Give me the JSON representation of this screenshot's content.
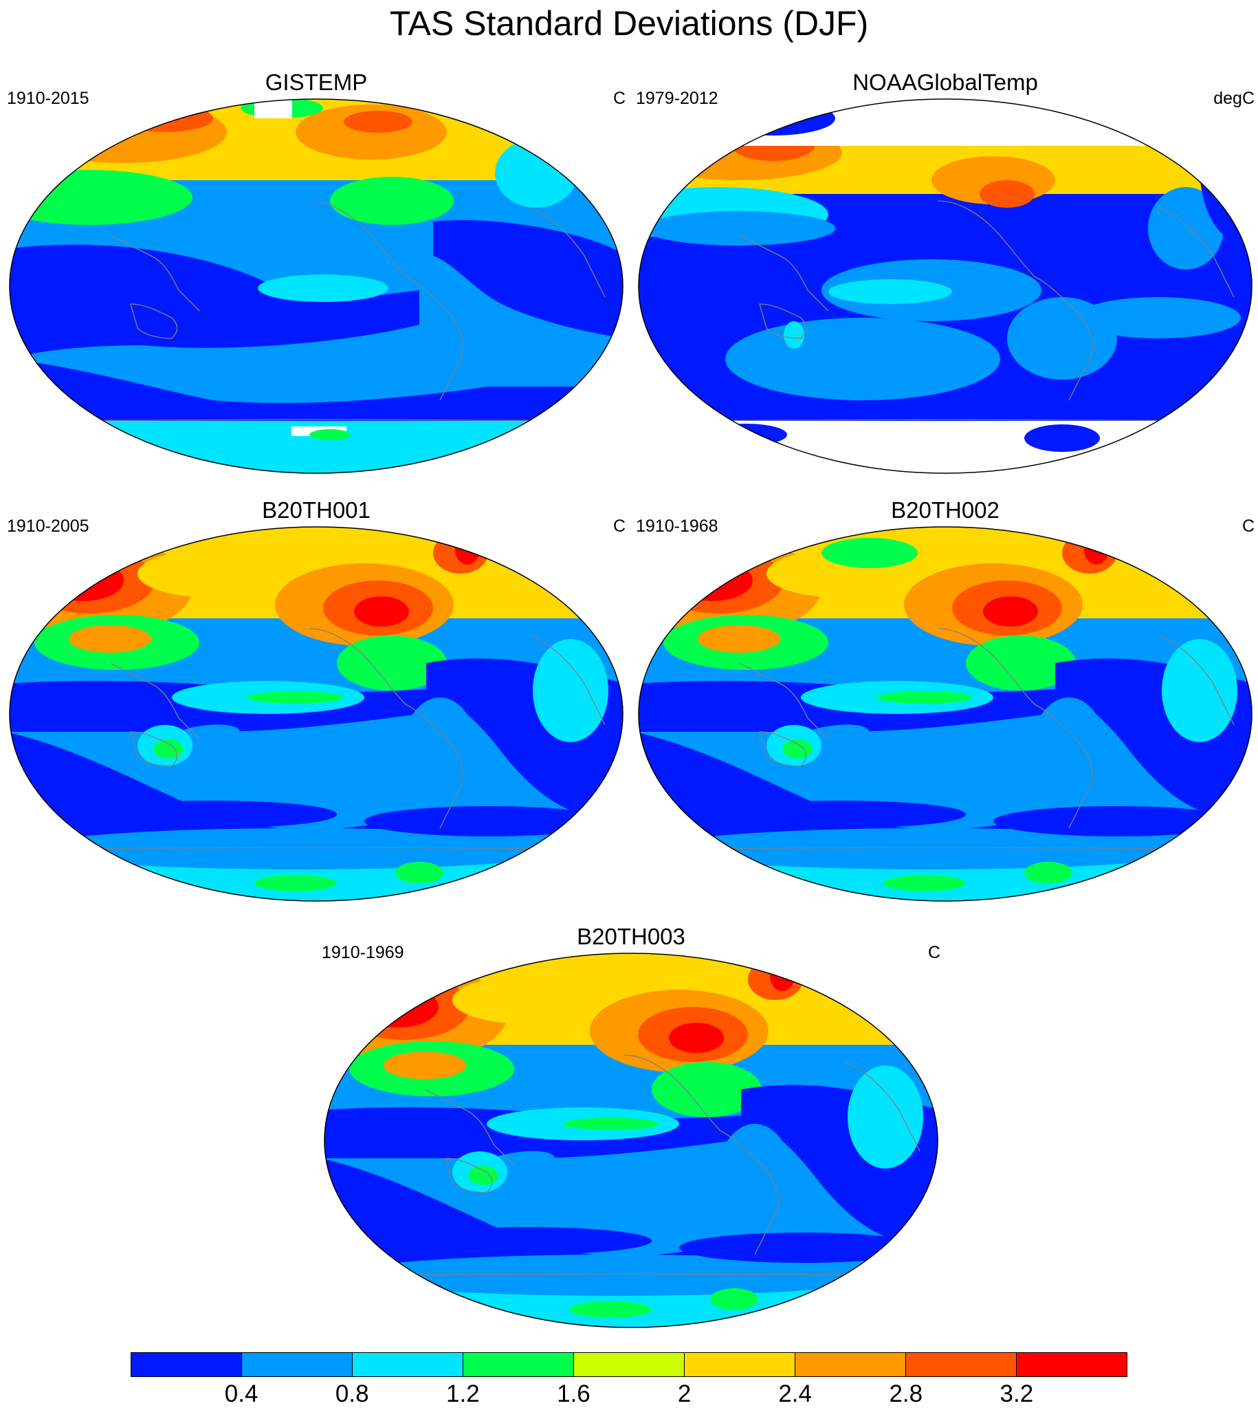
{
  "title": "TAS Standard Deviations (DJF)",
  "colors": {
    "c1": "#0019ff",
    "c2": "#0099ff",
    "c3": "#00e5ff",
    "c4": "#00ff4c",
    "c5": "#cdff00",
    "c6": "#ffd800",
    "c7": "#ff9900",
    "c8": "#ff5500",
    "c9": "#ff0000",
    "missing": "#ffffff",
    "coast": "#808080"
  },
  "panels": [
    {
      "title": "GISTEMP",
      "left": "1910-2015",
      "right": "C",
      "style": "obs1"
    },
    {
      "title": "NOAAGlobalTemp",
      "left": "1979-2012",
      "right": "degC",
      "style": "obs2"
    },
    {
      "title": "B20TH001",
      "left": "1910-2005",
      "right": "C",
      "style": "model"
    },
    {
      "title": "B20TH002",
      "left": "1910-1968",
      "right": "C",
      "style": "model"
    },
    {
      "title": "B20TH003",
      "left": "1910-1969",
      "right": "C",
      "style": "model"
    }
  ],
  "colorbar": {
    "labels": [
      "0.4",
      "0.8",
      "1.2",
      "1.6",
      "2",
      "2.4",
      "2.8",
      "3.2"
    ],
    "colors": [
      "#0019ff",
      "#0099ff",
      "#00e5ff",
      "#00ff4c",
      "#cdff00",
      "#ffd800",
      "#ff9900",
      "#ff5500",
      "#ff0000"
    ]
  }
}
